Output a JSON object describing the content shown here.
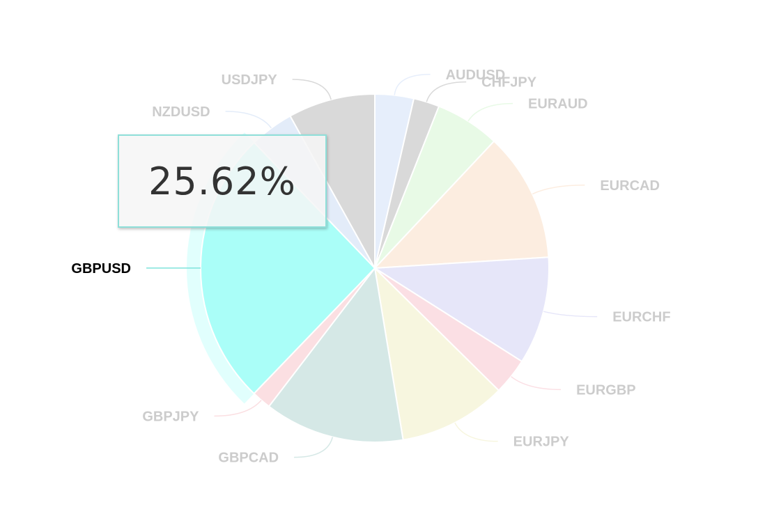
{
  "chart_data": {
    "type": "pie",
    "slices": [
      {
        "label": "AUDUSD",
        "value": 3.6,
        "color": "#e6eefb"
      },
      {
        "label": "CHFJPY",
        "value": 2.4,
        "color": "#d9d9d9"
      },
      {
        "label": "EURAUD",
        "value": 6.0,
        "color": "#e8fae6"
      },
      {
        "label": "EURCAD",
        "value": 12.0,
        "color": "#fcede0"
      },
      {
        "label": "EURCHF",
        "value": 10.0,
        "color": "#e6e6f9"
      },
      {
        "label": "EURGBP",
        "value": 3.4,
        "color": "#fbdfe4"
      },
      {
        "label": "EURJPY",
        "value": 10.0,
        "color": "#f7f6df"
      },
      {
        "label": "GBPCAD",
        "value": 13.0,
        "color": "#d5e8e6"
      },
      {
        "label": "GBPJPY",
        "value": 1.8,
        "color": "#fbdfe2"
      },
      {
        "label": "GBPUSD",
        "value": 25.62,
        "color": "#aafef8",
        "highlighted": true
      },
      {
        "label": "NZDUSD",
        "value": 4.1,
        "color": "#e3ecf9"
      },
      {
        "label": "USDJPY",
        "value": 8.08,
        "color": "#d9d9d9"
      }
    ],
    "label_color": "#cccccc",
    "highlight_label_color": "#000000"
  },
  "tooltip": {
    "value": "25.62%"
  }
}
